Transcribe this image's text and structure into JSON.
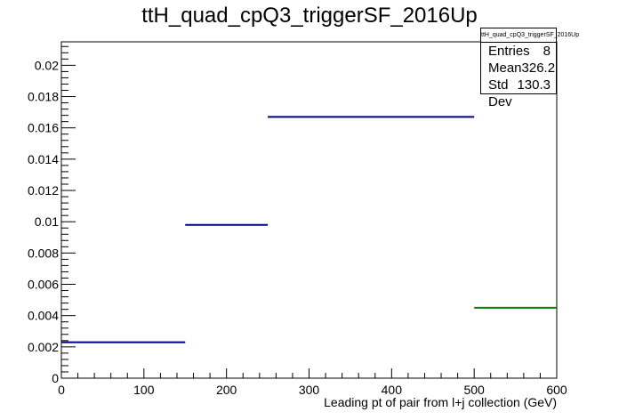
{
  "chart_data": {
    "type": "bar",
    "title": "ttH_quad_cpQ3_triggerSF_2016Up",
    "xlabel": "Leading pt of pair from l+j collection (GeV)",
    "ylabel": "",
    "xlim": [
      0,
      600
    ],
    "ylim": [
      0,
      0.0215
    ],
    "x_ticks": [
      0,
      100,
      200,
      300,
      400,
      500,
      600
    ],
    "x_tick_labels": [
      "0",
      "100",
      "200",
      "300",
      "400",
      "500",
      "600"
    ],
    "y_ticks": [
      0,
      0.002,
      0.004,
      0.006,
      0.008,
      0.01,
      0.012,
      0.014,
      0.016,
      0.018,
      0.02
    ],
    "y_tick_labels": [
      "0",
      "0.002",
      "0.004",
      "0.006",
      "0.008",
      "0.01",
      "0.012",
      "0.014",
      "0.016",
      "0.018",
      "0.02"
    ],
    "grid": false,
    "bins": [
      {
        "low": 0,
        "high": 150,
        "value": 0.0023,
        "color": "#000080"
      },
      {
        "low": 150,
        "high": 250,
        "value": 0.0098,
        "color": "#000080"
      },
      {
        "low": 250,
        "high": 500,
        "value": 0.0167,
        "color": "#000080"
      },
      {
        "low": 500,
        "high": 600,
        "value": 0.0045,
        "color": "#008000"
      }
    ],
    "stats_box": {
      "title": "ttH_quad_cpQ3_triggerSF_2016Up",
      "rows": [
        {
          "label": "Entries",
          "value": "8"
        },
        {
          "label": "Mean",
          "value": "326.2"
        },
        {
          "label": "Std Dev",
          "value": "130.3"
        }
      ]
    }
  }
}
